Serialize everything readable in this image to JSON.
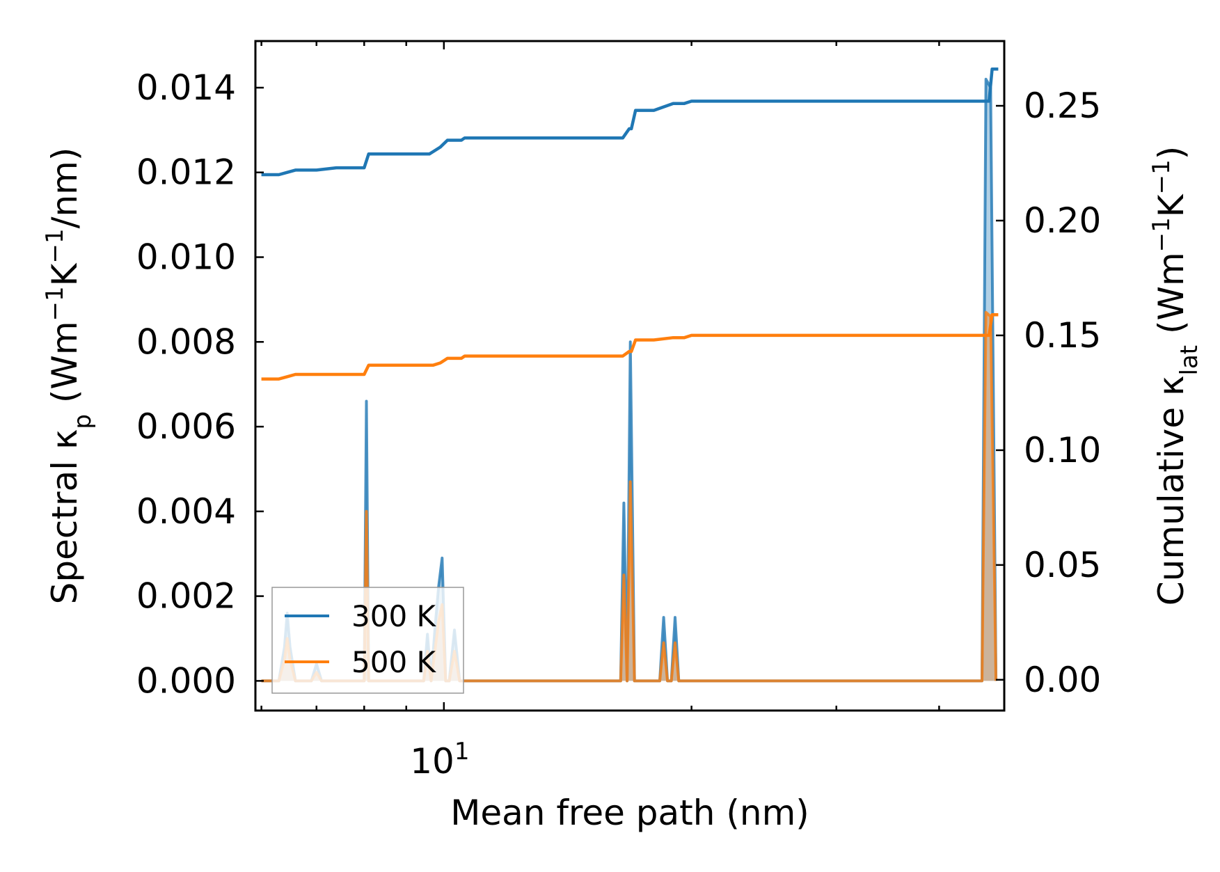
{
  "chart_data": {
    "type": "line",
    "xlabel": "Mean free path (nm)",
    "x_scale": "log",
    "xlim": [
      5.9,
      48
    ],
    "x_ticks": [
      {
        "value": 10,
        "base": "10",
        "exponent": "1"
      }
    ],
    "y_left": {
      "label": {
        "main": "Spectral κ",
        "sub": "p",
        "unit_pre": " (Wm",
        "exp1": "−1",
        "unit_mid": "K",
        "exp2": "−1",
        "unit_post": "/nm)"
      },
      "ylim": [
        -0.0007,
        0.0151
      ],
      "ticks": [
        "0.000",
        "0.002",
        "0.004",
        "0.006",
        "0.008",
        "0.010",
        "0.012",
        "0.014"
      ]
    },
    "y_right": {
      "label": {
        "main": "Cumulative κ",
        "sub": "lat",
        "unit_pre": " (Wm",
        "exp1": "−1",
        "unit_mid": "K",
        "exp2": "−1",
        "unit_post": ")"
      },
      "ylim": [
        -0.0134,
        0.2782
      ],
      "ticks": [
        "0.00",
        "0.05",
        "0.10",
        "0.15",
        "0.20",
        "0.25"
      ]
    },
    "legend": {
      "location": "lower-left",
      "entries": [
        "300 K",
        "500 K"
      ]
    },
    "series": [
      {
        "name": "300 K",
        "color": "#1f77b4",
        "cumulative": {
          "x": [
            6.0,
            6.3,
            6.45,
            6.6,
            7.0,
            7.4,
            7.9,
            8.0,
            8.1,
            9.0,
            9.6,
            9.7,
            9.9,
            10.1,
            10.5,
            10.6,
            11.0,
            13.0,
            16.5,
            16.8,
            16.9,
            17.1,
            17.5,
            18.0,
            19.0,
            19.6,
            20.0,
            20.4,
            20.6,
            21.0,
            25.0,
            46.0,
            46.4,
            47.2
          ],
          "y": [
            0.22,
            0.22,
            0.221,
            0.222,
            0.222,
            0.223,
            0.223,
            0.223,
            0.229,
            0.229,
            0.229,
            0.23,
            0.232,
            0.235,
            0.235,
            0.236,
            0.236,
            0.236,
            0.236,
            0.24,
            0.24,
            0.248,
            0.248,
            0.248,
            0.251,
            0.251,
            0.252,
            0.252,
            0.252,
            0.252,
            0.252,
            0.252,
            0.266,
            0.266
          ]
        },
        "spectral": {
          "x": [
            6.0,
            6.3,
            6.4,
            6.45,
            6.5,
            6.6,
            6.9,
            7.0,
            7.1,
            7.9,
            8.0,
            8.05,
            8.1,
            8.2,
            9.45,
            9.55,
            9.65,
            9.75,
            9.85,
            9.95,
            10.05,
            10.15,
            10.3,
            10.45,
            10.55,
            10.65,
            16.2,
            16.4,
            16.55,
            16.7,
            16.85,
            17.05,
            17.25,
            18.3,
            18.5,
            18.7,
            18.9,
            19.1,
            19.3,
            19.5,
            44.7,
            45.1,
            45.6,
            46.2,
            46.9
          ],
          "y": [
            0.0,
            0.0,
            0.0008,
            0.0016,
            0.0008,
            0.0,
            0.0,
            0.0004,
            0.0,
            0.0,
            0.0,
            0.0066,
            0.0,
            0.0,
            0.0,
            0.0011,
            0.0,
            0.0012,
            0.0022,
            0.0029,
            0.0,
            0.0,
            0.0012,
            0.0,
            0.0,
            0.0,
            0.0,
            0.0,
            0.0042,
            0.0,
            0.008,
            0.0,
            0.0,
            0.0,
            0.0015,
            0.0,
            0.0,
            0.0015,
            0.0,
            0.0,
            0.0,
            0.0,
            0.0142,
            0.014,
            0.0
          ]
        }
      },
      {
        "name": "500 K",
        "color": "#ff7f0e",
        "cumulative": {
          "x": [
            6.0,
            6.3,
            6.45,
            6.6,
            7.0,
            7.4,
            7.9,
            8.0,
            8.1,
            9.0,
            9.6,
            9.7,
            9.9,
            10.1,
            10.5,
            10.6,
            11.0,
            13.0,
            16.5,
            16.8,
            16.9,
            17.1,
            17.5,
            18.0,
            19.0,
            19.6,
            20.0,
            20.4,
            20.6,
            21.0,
            25.0,
            46.0,
            46.4,
            47.2
          ],
          "y": [
            0.131,
            0.131,
            0.132,
            0.133,
            0.133,
            0.133,
            0.133,
            0.133,
            0.137,
            0.137,
            0.137,
            0.137,
            0.138,
            0.14,
            0.14,
            0.141,
            0.141,
            0.141,
            0.141,
            0.143,
            0.143,
            0.148,
            0.148,
            0.148,
            0.149,
            0.149,
            0.15,
            0.15,
            0.15,
            0.15,
            0.15,
            0.15,
            0.159,
            0.159
          ]
        },
        "spectral": {
          "x": [
            6.0,
            6.3,
            6.4,
            6.45,
            6.5,
            6.6,
            6.9,
            7.0,
            7.1,
            7.9,
            8.0,
            8.05,
            8.1,
            8.2,
            9.45,
            9.55,
            9.65,
            9.75,
            9.85,
            9.95,
            10.05,
            10.15,
            10.3,
            10.45,
            10.55,
            10.65,
            16.2,
            16.4,
            16.55,
            16.7,
            16.85,
            17.05,
            17.25,
            18.3,
            18.5,
            18.7,
            18.9,
            19.1,
            19.3,
            19.5,
            44.7,
            45.1,
            45.6,
            46.2,
            46.9
          ],
          "y": [
            0.0,
            0.0,
            0.0005,
            0.001,
            0.0005,
            0.0,
            0.0,
            0.0002,
            0.0,
            0.0,
            0.0,
            0.004,
            0.0,
            0.0,
            0.0,
            0.0007,
            0.0,
            0.0007,
            0.0014,
            0.0018,
            0.0,
            0.0,
            0.0007,
            0.0,
            0.0,
            0.0,
            0.0,
            0.0,
            0.0025,
            0.0,
            0.0047,
            0.0,
            0.0,
            0.0,
            0.0009,
            0.0,
            0.0,
            0.0009,
            0.0,
            0.0,
            0.0,
            0.0,
            0.0087,
            0.0086,
            0.0
          ]
        }
      }
    ]
  }
}
